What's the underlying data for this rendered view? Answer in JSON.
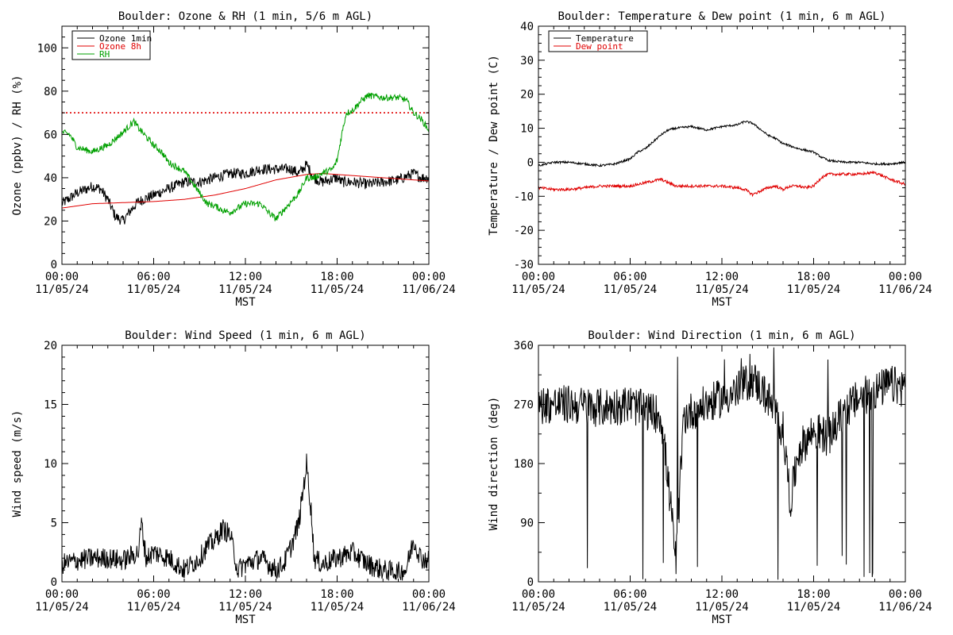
{
  "figure": {
    "background": "#ffffff"
  },
  "chart_data": [
    {
      "type": "line",
      "title": "Boulder: Ozone & RH (1 min, 5/6 m AGL)",
      "ylabel": "Ozone (ppbv) / RH (%)",
      "xlabel": "MST",
      "x_ticks": [
        "00:00\n11/05/24",
        "06:00\n11/05/24",
        "12:00\n11/05/24",
        "18:00\n11/05/24",
        "00:00\n11/06/24"
      ],
      "x_range_hours": [
        0,
        24
      ],
      "ylim": [
        0,
        110
      ],
      "y_ticks": [
        0,
        20,
        40,
        60,
        80,
        100
      ],
      "legend": {
        "placement": "top-left",
        "entries": [
          {
            "label": "Ozone 1min",
            "color": "#000000"
          },
          {
            "label": "Ozone 8h",
            "color": "#e00000"
          },
          {
            "label": "RH",
            "color": "#00a000"
          }
        ]
      },
      "reference_line": {
        "y": 70,
        "style": "dotted",
        "color": "#e00000"
      },
      "series": [
        {
          "name": "Ozone 1min",
          "color": "#000000",
          "noise": 2.5,
          "points": [
            [
              0,
              28
            ],
            [
              1,
              33
            ],
            [
              2,
              36
            ],
            [
              2.5,
              35
            ],
            [
              3,
              30
            ],
            [
              3.5,
              22
            ],
            [
              4,
              20
            ],
            [
              4.5,
              25
            ],
            [
              5,
              29
            ],
            [
              6,
              32
            ],
            [
              7,
              35
            ],
            [
              8,
              38
            ],
            [
              9,
              38
            ],
            [
              10,
              40
            ],
            [
              11,
              42
            ],
            [
              12,
              42
            ],
            [
              13,
              44
            ],
            [
              14,
              44
            ],
            [
              15,
              44
            ],
            [
              15.5,
              42
            ],
            [
              16,
              46
            ],
            [
              16.5,
              40
            ],
            [
              17,
              38
            ],
            [
              18,
              40
            ],
            [
              18.3,
              38
            ],
            [
              19,
              38
            ],
            [
              20,
              37
            ],
            [
              21,
              38
            ],
            [
              22,
              39
            ],
            [
              23,
              42
            ],
            [
              23.5,
              40
            ],
            [
              24,
              40
            ]
          ]
        },
        {
          "name": "Ozone 8h",
          "color": "#e00000",
          "noise": 0,
          "points": [
            [
              0,
              26
            ],
            [
              2,
              28
            ],
            [
              4,
              28.5
            ],
            [
              6,
              29
            ],
            [
              8,
              30
            ],
            [
              10,
              32
            ],
            [
              12,
              35
            ],
            [
              14,
              39
            ],
            [
              16,
              41.5
            ],
            [
              17,
              42
            ],
            [
              18,
              41.5
            ],
            [
              20,
              40.5
            ],
            [
              22,
              39.5
            ],
            [
              24,
              38.5
            ]
          ]
        },
        {
          "name": "RH",
          "color": "#00a000",
          "noise": 1.5,
          "points": [
            [
              0,
              61
            ],
            [
              0.5,
              60
            ],
            [
              1,
              54
            ],
            [
              2,
              52
            ],
            [
              3,
              55
            ],
            [
              4,
              61
            ],
            [
              4.7,
              66
            ],
            [
              5,
              63
            ],
            [
              6,
              55
            ],
            [
              6.5,
              52
            ],
            [
              7,
              47
            ],
            [
              8,
              43
            ],
            [
              8.5,
              38
            ],
            [
              9,
              33
            ],
            [
              9.5,
              28
            ],
            [
              10,
              27
            ],
            [
              10.5,
              25
            ],
            [
              11,
              24
            ],
            [
              12,
              28
            ],
            [
              13,
              28
            ],
            [
              13.5,
              24
            ],
            [
              14,
              21
            ],
            [
              14.5,
              25
            ],
            [
              15,
              29
            ],
            [
              15.5,
              33
            ],
            [
              16,
              40
            ],
            [
              16.5,
              40
            ],
            [
              17,
              42
            ],
            [
              17.7,
              44
            ],
            [
              18,
              48
            ],
            [
              18.3,
              60
            ],
            [
              18.6,
              70
            ],
            [
              19,
              71
            ],
            [
              19.5,
              75
            ],
            [
              20,
              78
            ],
            [
              21,
              77
            ],
            [
              22,
              77
            ],
            [
              22.5,
              76
            ],
            [
              23,
              70
            ],
            [
              23.5,
              67
            ],
            [
              24,
              62
            ]
          ]
        }
      ]
    },
    {
      "type": "line",
      "title": "Boulder: Temperature & Dew point (1 min, 6 m AGL)",
      "ylabel": "Temperature / Dew point (C)",
      "xlabel": "MST",
      "x_ticks": [
        "00:00\n11/05/24",
        "06:00\n11/05/24",
        "12:00\n11/05/24",
        "18:00\n11/05/24",
        "00:00\n11/06/24"
      ],
      "x_range_hours": [
        0,
        24
      ],
      "ylim": [
        -30,
        40
      ],
      "y_ticks": [
        -30,
        -20,
        -10,
        0,
        10,
        20,
        30,
        40
      ],
      "legend": {
        "placement": "top-left",
        "entries": [
          {
            "label": "Temperature",
            "color": "#000000"
          },
          {
            "label": "Dew point",
            "color": "#e00000"
          }
        ]
      },
      "series": [
        {
          "name": "Temperature",
          "color": "#000000",
          "noise": 0.3,
          "points": [
            [
              0,
              -1
            ],
            [
              1,
              0
            ],
            [
              2,
              0
            ],
            [
              3,
              -0.5
            ],
            [
              4,
              -1
            ],
            [
              5,
              -0.5
            ],
            [
              6,
              1
            ],
            [
              6.5,
              3
            ],
            [
              7,
              4
            ],
            [
              7.5,
              6
            ],
            [
              8,
              8
            ],
            [
              8.5,
              9.5
            ],
            [
              9,
              10
            ],
            [
              10,
              10.5
            ],
            [
              11,
              9.5
            ],
            [
              12,
              10.5
            ],
            [
              13,
              11
            ],
            [
              13.5,
              12
            ],
            [
              14,
              11.5
            ],
            [
              15,
              8
            ],
            [
              15.5,
              7
            ],
            [
              16,
              5.5
            ],
            [
              17,
              4
            ],
            [
              18,
              3
            ],
            [
              18.5,
              1.5
            ],
            [
              19,
              0.5
            ],
            [
              20,
              0
            ],
            [
              21,
              0
            ],
            [
              22,
              -0.5
            ],
            [
              23,
              -0.5
            ],
            [
              24,
              0
            ]
          ]
        },
        {
          "name": "Dew point",
          "color": "#e00000",
          "noise": 0.4,
          "points": [
            [
              0,
              -7.5
            ],
            [
              1,
              -8
            ],
            [
              2,
              -8
            ],
            [
              3,
              -7.5
            ],
            [
              4,
              -7
            ],
            [
              5,
              -7
            ],
            [
              6,
              -7
            ],
            [
              7,
              -6
            ],
            [
              7.5,
              -5.5
            ],
            [
              8,
              -5
            ],
            [
              8.5,
              -6
            ],
            [
              9,
              -7
            ],
            [
              10,
              -7
            ],
            [
              11,
              -7
            ],
            [
              12,
              -7
            ],
            [
              13,
              -7.5
            ],
            [
              13.5,
              -8
            ],
            [
              14,
              -9.5
            ],
            [
              14.5,
              -8.5
            ],
            [
              15,
              -7.5
            ],
            [
              15.5,
              -7
            ],
            [
              16,
              -8
            ],
            [
              16.5,
              -7
            ],
            [
              17,
              -7
            ],
            [
              17.5,
              -7.5
            ],
            [
              18,
              -7
            ],
            [
              18.5,
              -4.5
            ],
            [
              19,
              -3.5
            ],
            [
              20,
              -3.5
            ],
            [
              21,
              -3.5
            ],
            [
              22,
              -3
            ],
            [
              23,
              -5
            ],
            [
              24,
              -6.5
            ]
          ]
        }
      ]
    },
    {
      "type": "line",
      "title": "Boulder: Wind Speed (1 min, 6 m AGL)",
      "ylabel": "Wind speed (m/s)",
      "xlabel": "MST",
      "x_ticks": [
        "00:00\n11/05/24",
        "06:00\n11/05/24",
        "12:00\n11/05/24",
        "18:00\n11/05/24",
        "00:00\n11/06/24"
      ],
      "x_range_hours": [
        0,
        24
      ],
      "ylim": [
        0,
        20
      ],
      "y_ticks": [
        0,
        5,
        10,
        15,
        20
      ],
      "series": [
        {
          "name": "",
          "color": "#000000",
          "noise": 0.9,
          "points": [
            [
              0,
              1.5
            ],
            [
              1,
              1.8
            ],
            [
              2,
              2
            ],
            [
              3,
              2
            ],
            [
              4,
              1.8
            ],
            [
              5,
              2.5
            ],
            [
              5.2,
              5
            ],
            [
              5.5,
              2
            ],
            [
              6,
              2.5
            ],
            [
              7,
              2
            ],
            [
              8,
              1
            ],
            [
              9,
              2
            ],
            [
              9.5,
              3
            ],
            [
              10,
              3.5
            ],
            [
              10.5,
              4.5
            ],
            [
              11,
              4
            ],
            [
              11.5,
              1
            ],
            [
              12,
              1.5
            ],
            [
              13,
              2
            ],
            [
              14,
              1
            ],
            [
              14.5,
              1.5
            ],
            [
              15,
              3
            ],
            [
              15.5,
              5
            ],
            [
              15.8,
              8
            ],
            [
              16,
              10
            ],
            [
              16.3,
              6
            ],
            [
              16.5,
              2
            ],
            [
              17,
              1.5
            ],
            [
              18,
              2
            ],
            [
              19,
              2.5
            ],
            [
              20,
              1.5
            ],
            [
              21,
              1
            ],
            [
              22,
              0.8
            ],
            [
              22.5,
              1
            ],
            [
              23,
              3.5
            ],
            [
              23.5,
              2
            ],
            [
              24,
              1.8
            ]
          ]
        }
      ]
    },
    {
      "type": "line",
      "title": "Boulder: Wind Direction (1 min, 6 m AGL)",
      "ylabel": "Wind direction (deg)",
      "xlabel": "MST",
      "x_ticks": [
        "00:00\n11/05/24",
        "06:00\n11/05/24",
        "12:00\n11/05/24",
        "18:00\n11/05/24",
        "00:00\n11/06/24"
      ],
      "x_range_hours": [
        0,
        24
      ],
      "ylim": [
        0,
        360
      ],
      "y_ticks": [
        0,
        90,
        180,
        270,
        360
      ],
      "series": [
        {
          "name": "",
          "color": "#000000",
          "noise": 30,
          "points": [
            [
              0,
              270
            ],
            [
              2,
              270
            ],
            [
              4,
              265
            ],
            [
              6,
              270
            ],
            [
              7,
              260
            ],
            [
              8,
              255
            ],
            [
              8.5,
              150
            ],
            [
              9,
              30
            ],
            [
              9.5,
              250
            ],
            [
              10,
              260
            ],
            [
              11,
              270
            ],
            [
              12,
              280
            ],
            [
              13,
              290
            ],
            [
              14,
              310
            ],
            [
              15,
              280
            ],
            [
              16,
              230
            ],
            [
              16.5,
              120
            ],
            [
              17,
              200
            ],
            [
              18,
              230
            ],
            [
              19,
              220
            ],
            [
              20,
              260
            ],
            [
              21,
              280
            ],
            [
              22,
              290
            ],
            [
              23,
              300
            ],
            [
              24,
              295
            ]
          ]
        }
      ]
    }
  ]
}
